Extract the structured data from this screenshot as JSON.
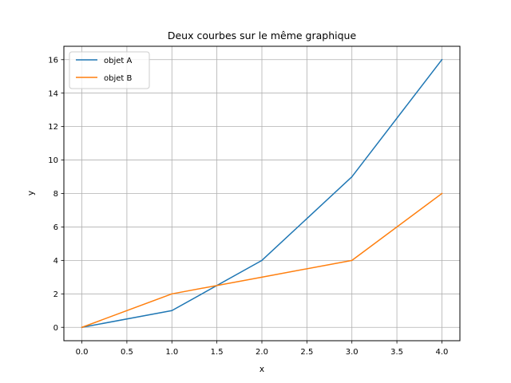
{
  "chart_data": {
    "type": "line",
    "title": "Deux courbes sur le même graphique",
    "xlabel": "x",
    "ylabel": "y",
    "x": [
      0,
      1,
      2,
      3,
      4
    ],
    "series": [
      {
        "name": "objet A",
        "values": [
          0,
          1,
          4,
          9,
          16
        ],
        "color": "#1f77b4"
      },
      {
        "name": "objet B",
        "values": [
          0,
          2,
          3,
          4,
          8
        ],
        "color": "#ff7f0e"
      }
    ],
    "xlim": [
      -0.2,
      4.2
    ],
    "ylim": [
      -0.8,
      16.8
    ],
    "xticks": [
      0.0,
      0.5,
      1.0,
      1.5,
      2.0,
      2.5,
      3.0,
      3.5,
      4.0
    ],
    "xtick_labels": [
      "0.0",
      "0.5",
      "1.0",
      "1.5",
      "2.0",
      "2.5",
      "3.0",
      "3.5",
      "4.0"
    ],
    "yticks": [
      0,
      2,
      4,
      6,
      8,
      10,
      12,
      14,
      16
    ],
    "ytick_labels": [
      "0",
      "2",
      "4",
      "6",
      "8",
      "10",
      "12",
      "14",
      "16"
    ],
    "grid": true,
    "legend_position": "upper-left"
  }
}
